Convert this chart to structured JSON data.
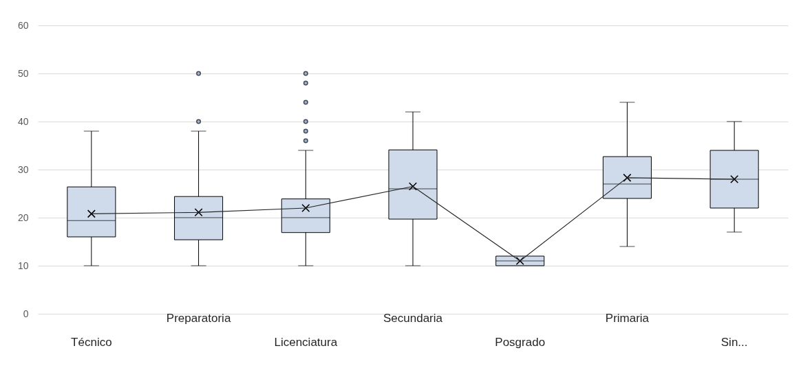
{
  "chart_data": {
    "type": "box",
    "categories": [
      "Técnico",
      "Preparatoria",
      "Licenciatura",
      "Secundaria",
      "Posgrado",
      "Primaria",
      "Sin..."
    ],
    "ylim": [
      0,
      60
    ],
    "yticks": [
      0,
      10,
      20,
      30,
      40,
      50,
      60
    ],
    "grid": "y",
    "marker": "cross",
    "series": [
      {
        "color": "#cfdbeb",
        "boxes": [
          {
            "low": 10,
            "q1": 16,
            "median": 19.4,
            "q3": 26.4,
            "high": 38,
            "mean": 20.8
          },
          {
            "low": 10,
            "q1": 15.4,
            "median": 20,
            "q3": 24.4,
            "high": 38,
            "mean": 21.1,
            "outliers": [
              40,
              50
            ]
          },
          {
            "low": 10,
            "q1": 16.9,
            "median": 20,
            "q3": 23.9,
            "high": 34,
            "mean": 22,
            "outliers": [
              36,
              38,
              40,
              44,
              48,
              50
            ]
          },
          {
            "low": 10,
            "q1": 19.7,
            "median": 26,
            "q3": 34.1,
            "high": 42,
            "mean": 26.5
          },
          {
            "low": 10,
            "q1": 10,
            "median": 11,
            "q3": 12,
            "high": 12,
            "mean": 11
          },
          {
            "low": 14,
            "q1": 24,
            "median": 27,
            "q3": 32.7,
            "high": 44,
            "mean": 28.3
          },
          {
            "low": 17,
            "q1": 22,
            "median": 28,
            "q3": 34,
            "high": 40,
            "mean": 28
          }
        ]
      },
      {
        "type": "line",
        "color": "#262626",
        "marker": "none",
        "values": [
          20.8,
          21.1,
          22,
          26.5,
          11,
          28.3,
          28
        ]
      }
    ]
  }
}
